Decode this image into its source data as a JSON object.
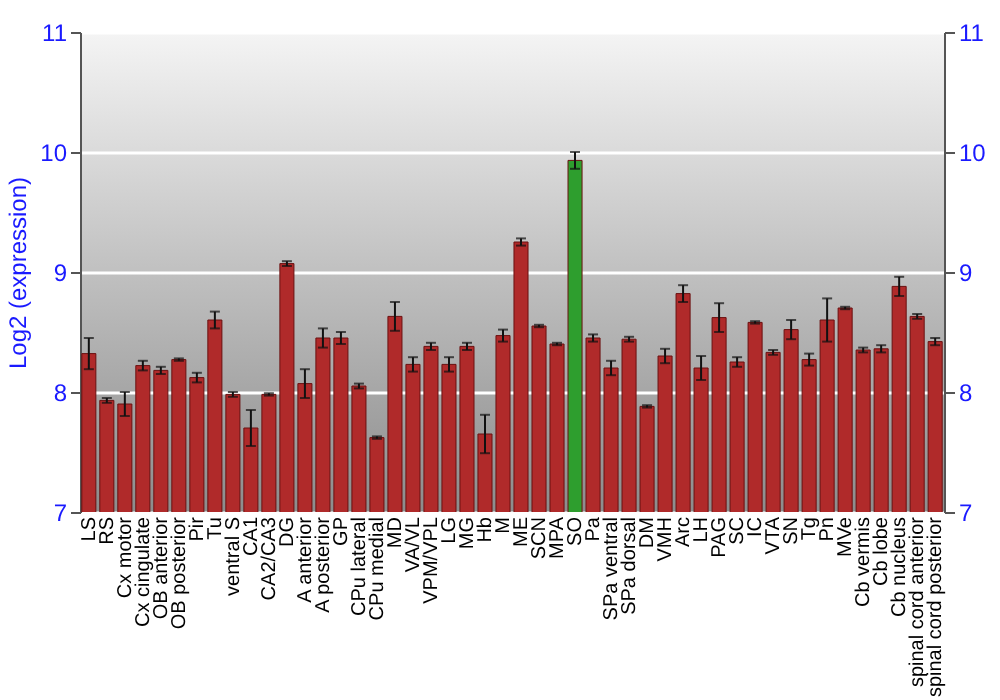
{
  "chart_data": {
    "type": "bar",
    "ylabel": "Log2 (expression)",
    "categories": [
      "LS",
      "RS",
      "Cx motor",
      "Cx cingulate",
      "OB anterior",
      "OB posterior",
      "Pir",
      "Tu",
      "ventral S",
      "CA1",
      "CA2/CA3",
      "DG",
      "A anterior",
      "A posterior",
      "GP",
      "CPu lateral",
      "CPu medial",
      "MD",
      "VA/VL",
      "VPM/VPL",
      "LG",
      "MG",
      "Hb",
      "M",
      "ME",
      "SCN",
      "MPA",
      "SO",
      "Pa",
      "SPa ventral",
      "SPa dorsal",
      "DM",
      "VMH",
      "Arc",
      "LH",
      "PAG",
      "SC",
      "IC",
      "VTA",
      "SN",
      "Tg",
      "Pn",
      "MVe",
      "Cb vermis",
      "Cb lobe",
      "Cb nucleus",
      "spinal cord anterior",
      "spinal cord posterior"
    ],
    "values": [
      8.32,
      7.93,
      7.9,
      8.22,
      8.18,
      8.27,
      8.12,
      8.6,
      7.98,
      7.7,
      7.98,
      9.07,
      8.07,
      8.45,
      8.45,
      8.05,
      7.62,
      8.63,
      8.23,
      8.38,
      8.23,
      8.38,
      7.65,
      8.47,
      9.25,
      8.55,
      8.4,
      9.93,
      8.45,
      8.2,
      8.44,
      7.88,
      8.3,
      8.82,
      8.2,
      8.62,
      8.25,
      8.58,
      8.33,
      8.52,
      8.27,
      8.6,
      8.7,
      8.35,
      8.36,
      8.88,
      8.63,
      8.42
    ],
    "errors": [
      0.13,
      0.02,
      0.1,
      0.04,
      0.03,
      0.01,
      0.04,
      0.07,
      0.02,
      0.15,
      0.01,
      0.02,
      0.12,
      0.08,
      0.05,
      0.02,
      0.01,
      0.12,
      0.06,
      0.03,
      0.06,
      0.03,
      0.16,
      0.05,
      0.03,
      0.01,
      0.01,
      0.07,
      0.03,
      0.06,
      0.02,
      0.01,
      0.06,
      0.07,
      0.1,
      0.12,
      0.04,
      0.01,
      0.02,
      0.08,
      0.05,
      0.18,
      0.01,
      0.02,
      0.03,
      0.08,
      0.02,
      0.03
    ],
    "colors": [
      "#b02a2a",
      "#b02a2a",
      "#b02a2a",
      "#b02a2a",
      "#b02a2a",
      "#b02a2a",
      "#b02a2a",
      "#b02a2a",
      "#b02a2a",
      "#b02a2a",
      "#b02a2a",
      "#b02a2a",
      "#b02a2a",
      "#b02a2a",
      "#b02a2a",
      "#b02a2a",
      "#b02a2a",
      "#b02a2a",
      "#b02a2a",
      "#b02a2a",
      "#b02a2a",
      "#b02a2a",
      "#b02a2a",
      "#b02a2a",
      "#b02a2a",
      "#b02a2a",
      "#b02a2a",
      "#2e9e2e",
      "#b02a2a",
      "#b02a2a",
      "#b02a2a",
      "#b02a2a",
      "#b02a2a",
      "#b02a2a",
      "#b02a2a",
      "#b02a2a",
      "#b02a2a",
      "#b02a2a",
      "#b02a2a",
      "#b02a2a",
      "#b02a2a",
      "#b02a2a",
      "#b02a2a",
      "#b02a2a",
      "#b02a2a",
      "#b02a2a",
      "#b02a2a",
      "#b02a2a"
    ],
    "ylim": [
      7,
      11
    ],
    "yticks": [
      7,
      8,
      9,
      10,
      11
    ],
    "y2lim": [
      7,
      11
    ],
    "y2ticks": [
      7,
      8,
      9,
      10,
      11
    ],
    "grid": "y"
  }
}
